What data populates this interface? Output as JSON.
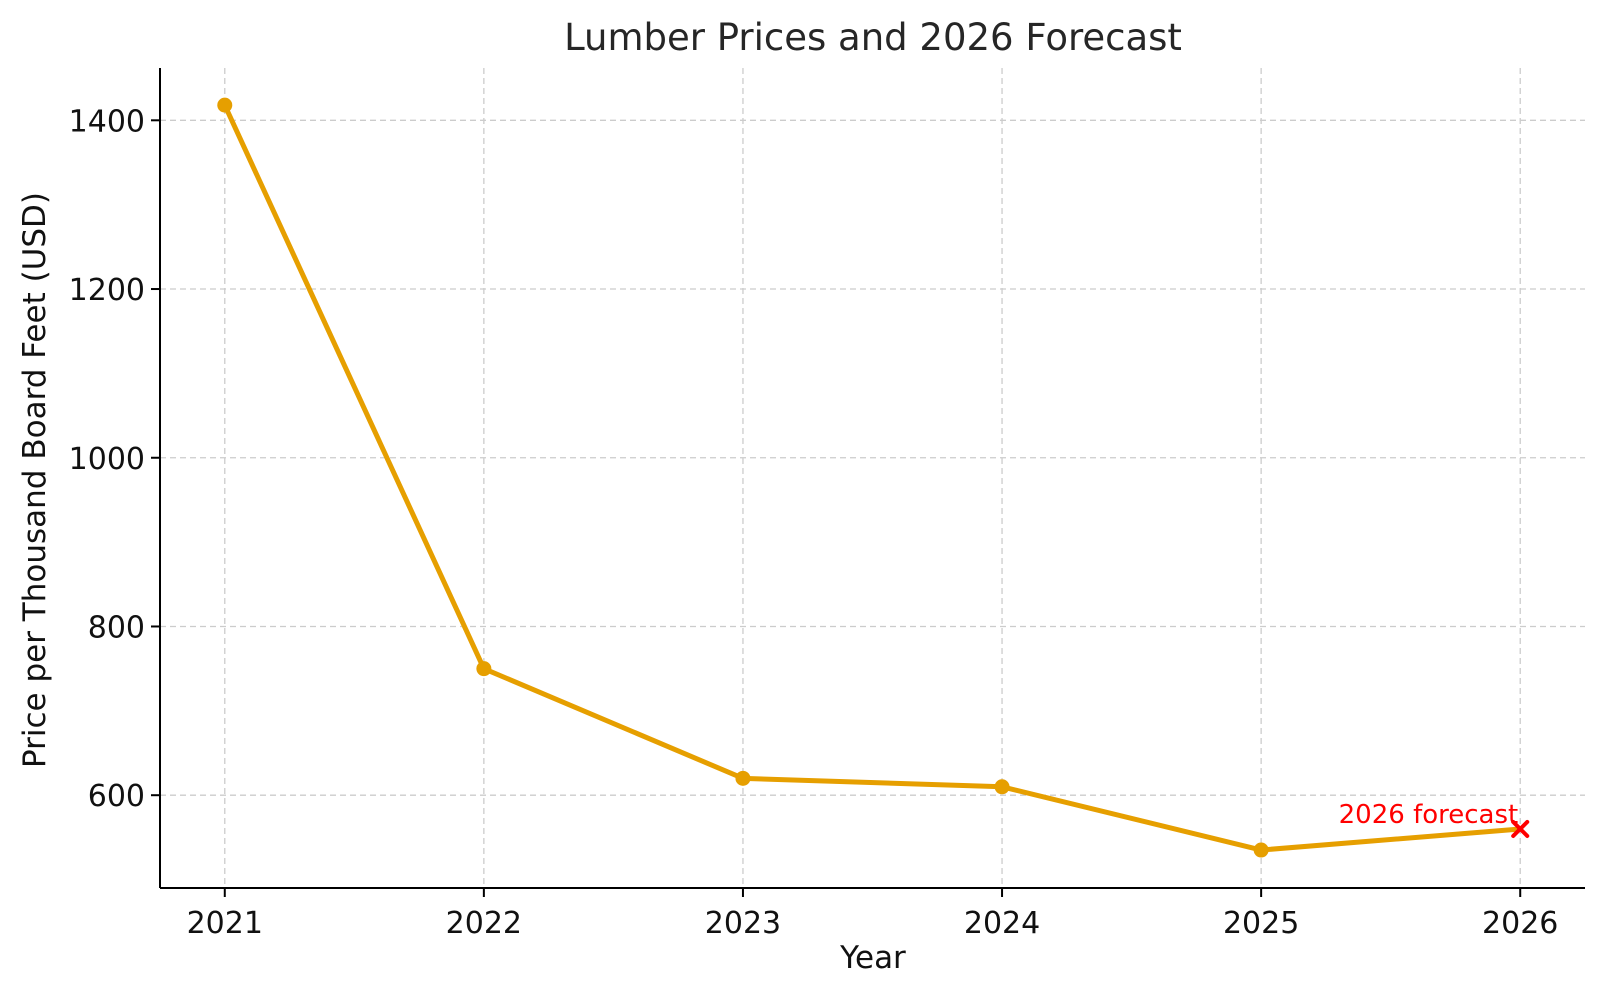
{
  "chart_data": {
    "type": "line",
    "title": "Lumber Prices and 2026 Forecast",
    "xlabel": "Year",
    "ylabel": "Price per Thousand Board Feet (USD)",
    "x": [
      2021,
      2022,
      2023,
      2024,
      2025,
      2026
    ],
    "x_ticks": [
      "2021",
      "2022",
      "2023",
      "2024",
      "2025",
      "2026"
    ],
    "y_ticks": [
      600,
      800,
      1000,
      1200,
      1400
    ],
    "y_tick_labels": [
      "600",
      "800",
      "1000",
      "1200",
      "1400"
    ],
    "xlim": [
      2020.75,
      2026.25
    ],
    "ylim": [
      490,
      1462
    ],
    "grid": true,
    "series": [
      {
        "values": [
          1418,
          750,
          620,
          610,
          535,
          560
        ],
        "color": "#e69f00",
        "marker": "circle"
      }
    ],
    "forecast_point": {
      "x": 2026,
      "y": 560,
      "marker": "x",
      "color": "#ff0000"
    },
    "annotations": [
      {
        "text": "2026 forecast",
        "x": 2026,
        "y": 560,
        "color": "#ff0000"
      }
    ]
  }
}
